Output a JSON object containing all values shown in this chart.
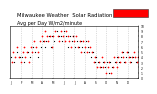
{
  "title": "Milwaukee Weather  Solar Radiation",
  "subtitle": "Avg per Day W/m2/minute",
  "title_fontsize": 3.8,
  "background_color": "#ffffff",
  "plot_bg_color": "#ffffff",
  "grid_color": "#c0c0c0",
  "dot_color_red": "#ff0000",
  "dot_color_black": "#000000",
  "legend_box_color": "#ff0000",
  "ylim": [
    0,
    10
  ],
  "xlim": [
    0,
    365
  ],
  "num_vert_lines": 12,
  "red_x": [
    5,
    8,
    12,
    18,
    25,
    30,
    35,
    38,
    42,
    48,
    52,
    58,
    62,
    68,
    72,
    78,
    85,
    90,
    95,
    100,
    105,
    108,
    112,
    118,
    122,
    128,
    135,
    140,
    145,
    150,
    155,
    160,
    165,
    168,
    172,
    178,
    182,
    188,
    192,
    198,
    202,
    208,
    212,
    218,
    222,
    228,
    232,
    238,
    242,
    248,
    252,
    255,
    260,
    265,
    268,
    272,
    278,
    282,
    288,
    292,
    295,
    300,
    305,
    308,
    312,
    318,
    322,
    328,
    332,
    338,
    342,
    348,
    352,
    355,
    360,
    365
  ],
  "red_y": [
    3,
    5,
    4,
    6,
    4,
    3,
    5,
    6,
    4,
    5,
    3,
    6,
    5,
    7,
    6,
    5,
    7,
    8,
    7,
    9,
    8,
    7,
    8,
    6,
    8,
    9,
    8,
    7,
    9,
    8,
    7,
    9,
    8,
    7,
    6,
    8,
    7,
    8,
    6,
    7,
    5,
    7,
    6,
    5,
    7,
    6,
    5,
    3,
    4,
    2,
    3,
    2,
    4,
    2,
    3,
    1,
    2,
    3,
    1,
    2,
    4,
    3,
    2,
    4,
    3,
    5,
    4,
    3,
    5,
    4,
    3,
    4,
    5,
    4,
    3,
    4
  ],
  "black_x": [
    3,
    10,
    20,
    28,
    33,
    40,
    50,
    55,
    65,
    70,
    80,
    88,
    93,
    98,
    103,
    110,
    115,
    120,
    125,
    132,
    138,
    143,
    148,
    153,
    158,
    163,
    170,
    175,
    180,
    185,
    190,
    195,
    200,
    205,
    210,
    215,
    220,
    225,
    230,
    235,
    240,
    245,
    250,
    258,
    263,
    270,
    275,
    280,
    285,
    290,
    298,
    303,
    310,
    315,
    320,
    325,
    330,
    335,
    340,
    345,
    350,
    358,
    363
  ],
  "black_y": [
    4,
    3,
    5,
    4,
    4,
    3,
    5,
    4,
    6,
    5,
    4,
    6,
    7,
    6,
    7,
    8,
    6,
    8,
    7,
    9,
    8,
    8,
    7,
    9,
    8,
    6,
    8,
    7,
    8,
    6,
    7,
    6,
    7,
    6,
    5,
    7,
    6,
    5,
    4,
    5,
    3,
    4,
    3,
    2,
    3,
    2,
    3,
    1,
    3,
    2,
    3,
    4,
    3,
    4,
    5,
    3,
    4,
    5,
    4,
    3,
    4,
    3,
    4
  ]
}
